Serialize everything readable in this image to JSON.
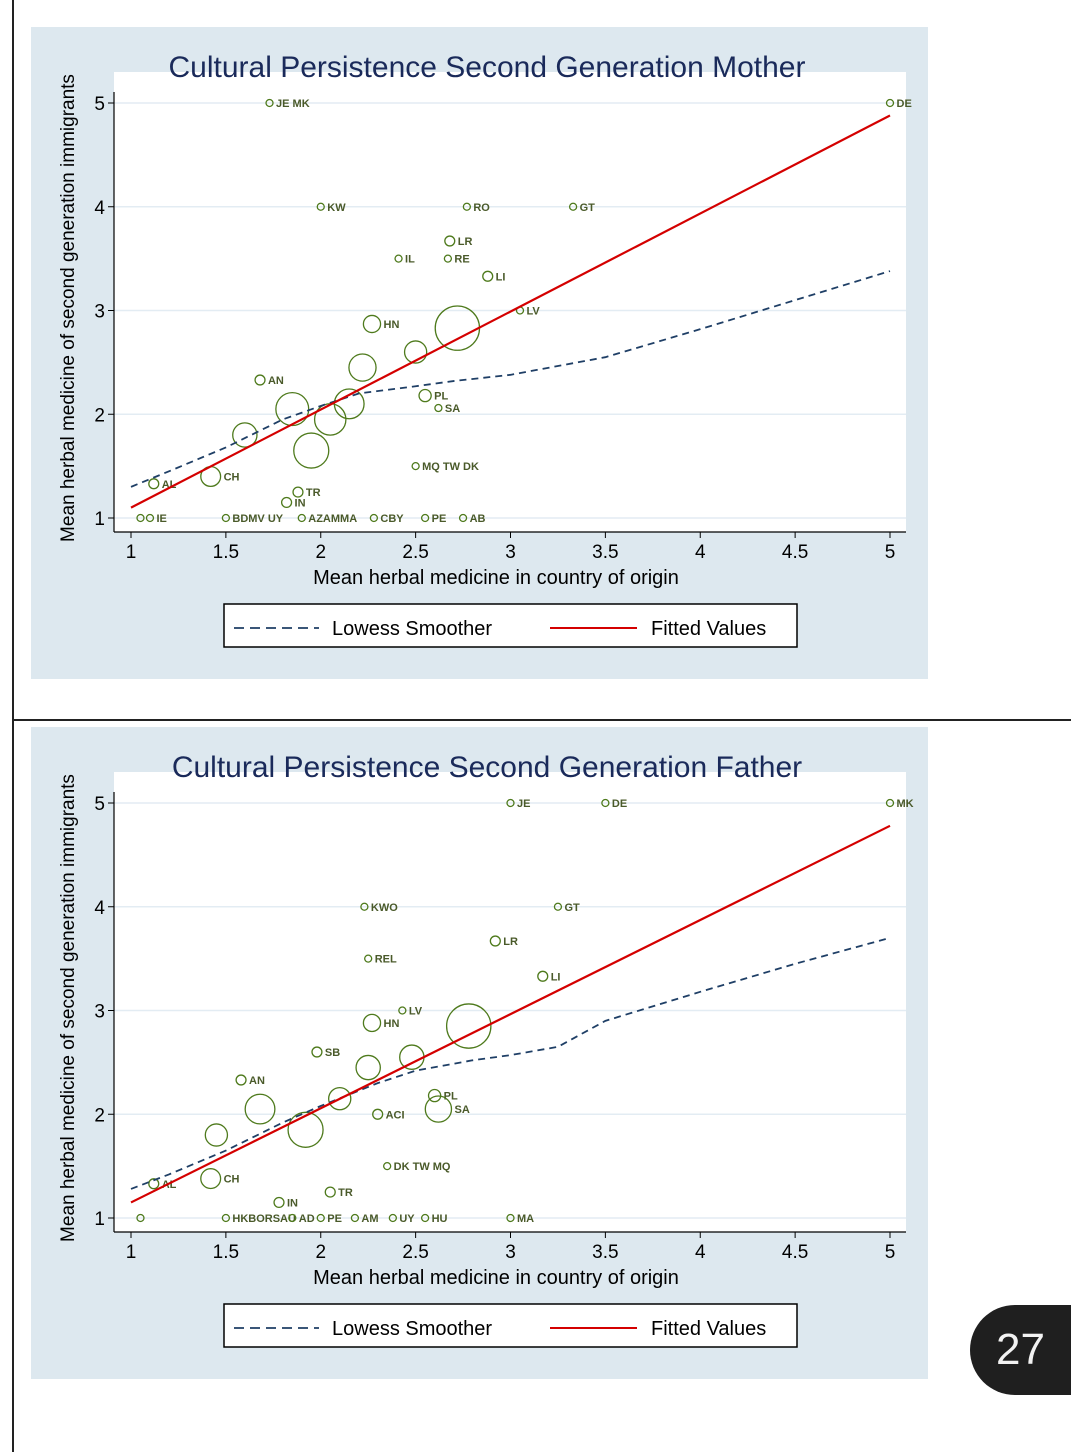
{
  "page": {
    "number": "27"
  },
  "colors": {
    "panel_bg": "#dde8ef",
    "fit": "#d40000",
    "lowess": "#1f3f66",
    "marker": "#4e7a1c",
    "text": "#1a2a5a"
  },
  "chart_data": [
    {
      "type": "scatter",
      "title": "Cultural Persistence Second Generation Mother",
      "xlabel": "Mean herbal medicine in country of origin",
      "ylabel": "Mean herbal medicine of second generation immigrants",
      "xlim": [
        1,
        5
      ],
      "ylim": [
        1,
        5
      ],
      "xticks": [
        "1",
        "1.5",
        "2",
        "2.5",
        "3",
        "3.5",
        "4",
        "4.5",
        "5"
      ],
      "yticks": [
        "1",
        "2",
        "3",
        "4",
        "5"
      ],
      "legend": [
        "Lowess Smoother",
        "Fitted Values"
      ],
      "points": [
        {
          "label": "JE MK",
          "x": 1.73,
          "y": 5.0,
          "w": 1
        },
        {
          "label": "DE",
          "x": 5.0,
          "y": 5.0,
          "w": 1
        },
        {
          "label": "KW",
          "x": 2.0,
          "y": 4.0,
          "w": 1
        },
        {
          "label": "RO",
          "x": 2.77,
          "y": 4.0,
          "w": 1
        },
        {
          "label": "GT",
          "x": 3.33,
          "y": 4.0,
          "w": 1
        },
        {
          "label": "LR",
          "x": 2.68,
          "y": 3.67,
          "w": 2
        },
        {
          "label": "IL",
          "x": 2.41,
          "y": 3.5,
          "w": 1
        },
        {
          "label": "RE",
          "x": 2.67,
          "y": 3.5,
          "w": 1
        },
        {
          "label": "LI",
          "x": 2.88,
          "y": 3.33,
          "w": 2
        },
        {
          "label": "LV",
          "x": 3.05,
          "y": 3.0,
          "w": 1
        },
        {
          "label": "HN",
          "x": 2.27,
          "y": 2.87,
          "w": 6
        },
        {
          "label": "",
          "x": 2.72,
          "y": 2.83,
          "w": 40
        },
        {
          "label": "",
          "x": 2.5,
          "y": 2.6,
          "w": 10
        },
        {
          "label": "",
          "x": 2.22,
          "y": 2.45,
          "w": 15
        },
        {
          "label": "AN",
          "x": 1.68,
          "y": 2.33,
          "w": 2
        },
        {
          "label": "",
          "x": 1.85,
          "y": 2.05,
          "w": 22
        },
        {
          "label": "",
          "x": 2.15,
          "y": 2.1,
          "w": 18
        },
        {
          "label": "",
          "x": 2.05,
          "y": 1.95,
          "w": 20
        },
        {
          "label": "PL",
          "x": 2.55,
          "y": 2.18,
          "w": 3
        },
        {
          "label": "SA",
          "x": 2.62,
          "y": 2.06,
          "w": 1
        },
        {
          "label": "",
          "x": 1.6,
          "y": 1.8,
          "w": 12
        },
        {
          "label": "",
          "x": 1.95,
          "y": 1.65,
          "w": 25
        },
        {
          "label": "MQ TW DK",
          "x": 2.5,
          "y": 1.5,
          "w": 1
        },
        {
          "label": "AL",
          "x": 1.12,
          "y": 1.33,
          "w": 2
        },
        {
          "label": "CH",
          "x": 1.42,
          "y": 1.4,
          "w": 8
        },
        {
          "label": "TR",
          "x": 1.88,
          "y": 1.25,
          "w": 2
        },
        {
          "label": "IN",
          "x": 1.82,
          "y": 1.15,
          "w": 2
        },
        {
          "label": "",
          "x": 1.05,
          "y": 1.0,
          "w": 1
        },
        {
          "label": "IE",
          "x": 1.1,
          "y": 1.0,
          "w": 1
        },
        {
          "label": "BDMV UY",
          "x": 1.5,
          "y": 1.0,
          "w": 1
        },
        {
          "label": "AZAMMA",
          "x": 1.9,
          "y": 1.0,
          "w": 1
        },
        {
          "label": "CBY",
          "x": 2.28,
          "y": 1.0,
          "w": 1
        },
        {
          "label": "PE",
          "x": 2.55,
          "y": 1.0,
          "w": 1
        },
        {
          "label": "AB",
          "x": 2.75,
          "y": 1.0,
          "w": 1
        }
      ],
      "fitted": {
        "x": [
          1,
          5
        ],
        "y": [
          1.1,
          4.88
        ]
      },
      "lowess": {
        "x": [
          1.0,
          1.2,
          1.5,
          1.8,
          2.0,
          2.2,
          2.5,
          2.7,
          3.0,
          3.5,
          4.0,
          4.5,
          5.0
        ],
        "y": [
          1.3,
          1.45,
          1.68,
          1.95,
          2.08,
          2.2,
          2.27,
          2.32,
          2.38,
          2.55,
          2.82,
          3.1,
          3.38
        ]
      }
    },
    {
      "type": "scatter",
      "title": "Cultural Persistence Second Generation Father",
      "xlabel": "Mean herbal medicine in country of origin",
      "ylabel": "Mean herbal medicine of second generation immigrants",
      "xlim": [
        1,
        5
      ],
      "ylim": [
        1,
        5
      ],
      "xticks": [
        "1",
        "1.5",
        "2",
        "2.5",
        "3",
        "3.5",
        "4",
        "4.5",
        "5"
      ],
      "yticks": [
        "1",
        "2",
        "3",
        "4",
        "5"
      ],
      "legend": [
        "Lowess Smoother",
        "Fitted Values"
      ],
      "points": [
        {
          "label": "JE",
          "x": 3.0,
          "y": 5.0,
          "w": 1
        },
        {
          "label": "DE",
          "x": 3.5,
          "y": 5.0,
          "w": 1
        },
        {
          "label": "MK",
          "x": 5.0,
          "y": 5.0,
          "w": 1
        },
        {
          "label": "KWO",
          "x": 2.23,
          "y": 4.0,
          "w": 1
        },
        {
          "label": "GT",
          "x": 3.25,
          "y": 4.0,
          "w": 1
        },
        {
          "label": "LR",
          "x": 2.92,
          "y": 3.67,
          "w": 2
        },
        {
          "label": "REL",
          "x": 2.25,
          "y": 3.5,
          "w": 1
        },
        {
          "label": "LI",
          "x": 3.17,
          "y": 3.33,
          "w": 2
        },
        {
          "label": "LV",
          "x": 2.43,
          "y": 3.0,
          "w": 1
        },
        {
          "label": "HN",
          "x": 2.27,
          "y": 2.88,
          "w": 6
        },
        {
          "label": "",
          "x": 2.78,
          "y": 2.85,
          "w": 40
        },
        {
          "label": "",
          "x": 2.48,
          "y": 2.55,
          "w": 12
        },
        {
          "label": "SB",
          "x": 1.98,
          "y": 2.6,
          "w": 2
        },
        {
          "label": "",
          "x": 2.25,
          "y": 2.45,
          "w": 12
        },
        {
          "label": "AN",
          "x": 1.58,
          "y": 2.33,
          "w": 2
        },
        {
          "label": "",
          "x": 1.68,
          "y": 2.05,
          "w": 18
        },
        {
          "label": "",
          "x": 1.92,
          "y": 1.85,
          "w": 25
        },
        {
          "label": "",
          "x": 2.1,
          "y": 2.15,
          "w": 10
        },
        {
          "label": "PL",
          "x": 2.6,
          "y": 2.18,
          "w": 3
        },
        {
          "label": "SA",
          "x": 2.62,
          "y": 2.05,
          "w": 14
        },
        {
          "label": "ACI",
          "x": 2.3,
          "y": 2.0,
          "w": 2
        },
        {
          "label": "",
          "x": 1.45,
          "y": 1.8,
          "w": 10
        },
        {
          "label": "DK TW MQ",
          "x": 2.35,
          "y": 1.5,
          "w": 1
        },
        {
          "label": "AL",
          "x": 1.12,
          "y": 1.33,
          "w": 2
        },
        {
          "label": "CH",
          "x": 1.42,
          "y": 1.38,
          "w": 8
        },
        {
          "label": "TR",
          "x": 2.05,
          "y": 1.25,
          "w": 2
        },
        {
          "label": "IN",
          "x": 1.78,
          "y": 1.15,
          "w": 2
        },
        {
          "label": "",
          "x": 1.05,
          "y": 1.0,
          "w": 1
        },
        {
          "label": "HKBORSAU",
          "x": 1.5,
          "y": 1.0,
          "w": 1
        },
        {
          "label": "AD",
          "x": 1.85,
          "y": 1.0,
          "w": 1
        },
        {
          "label": "PE",
          "x": 2.0,
          "y": 1.0,
          "w": 1
        },
        {
          "label": "AM",
          "x": 2.18,
          "y": 1.0,
          "w": 1
        },
        {
          "label": "UY",
          "x": 2.38,
          "y": 1.0,
          "w": 1
        },
        {
          "label": "HU",
          "x": 2.55,
          "y": 1.0,
          "w": 1
        },
        {
          "label": "MA",
          "x": 3.0,
          "y": 1.0,
          "w": 1
        }
      ],
      "fitted": {
        "x": [
          1,
          5
        ],
        "y": [
          1.15,
          4.78
        ]
      },
      "lowess": {
        "x": [
          1.0,
          1.2,
          1.5,
          1.8,
          2.0,
          2.3,
          2.5,
          2.8,
          3.0,
          3.25,
          3.5,
          4.0,
          4.5,
          5.0
        ],
        "y": [
          1.28,
          1.42,
          1.65,
          1.92,
          2.08,
          2.3,
          2.42,
          2.52,
          2.57,
          2.65,
          2.9,
          3.18,
          3.45,
          3.7
        ]
      }
    }
  ]
}
